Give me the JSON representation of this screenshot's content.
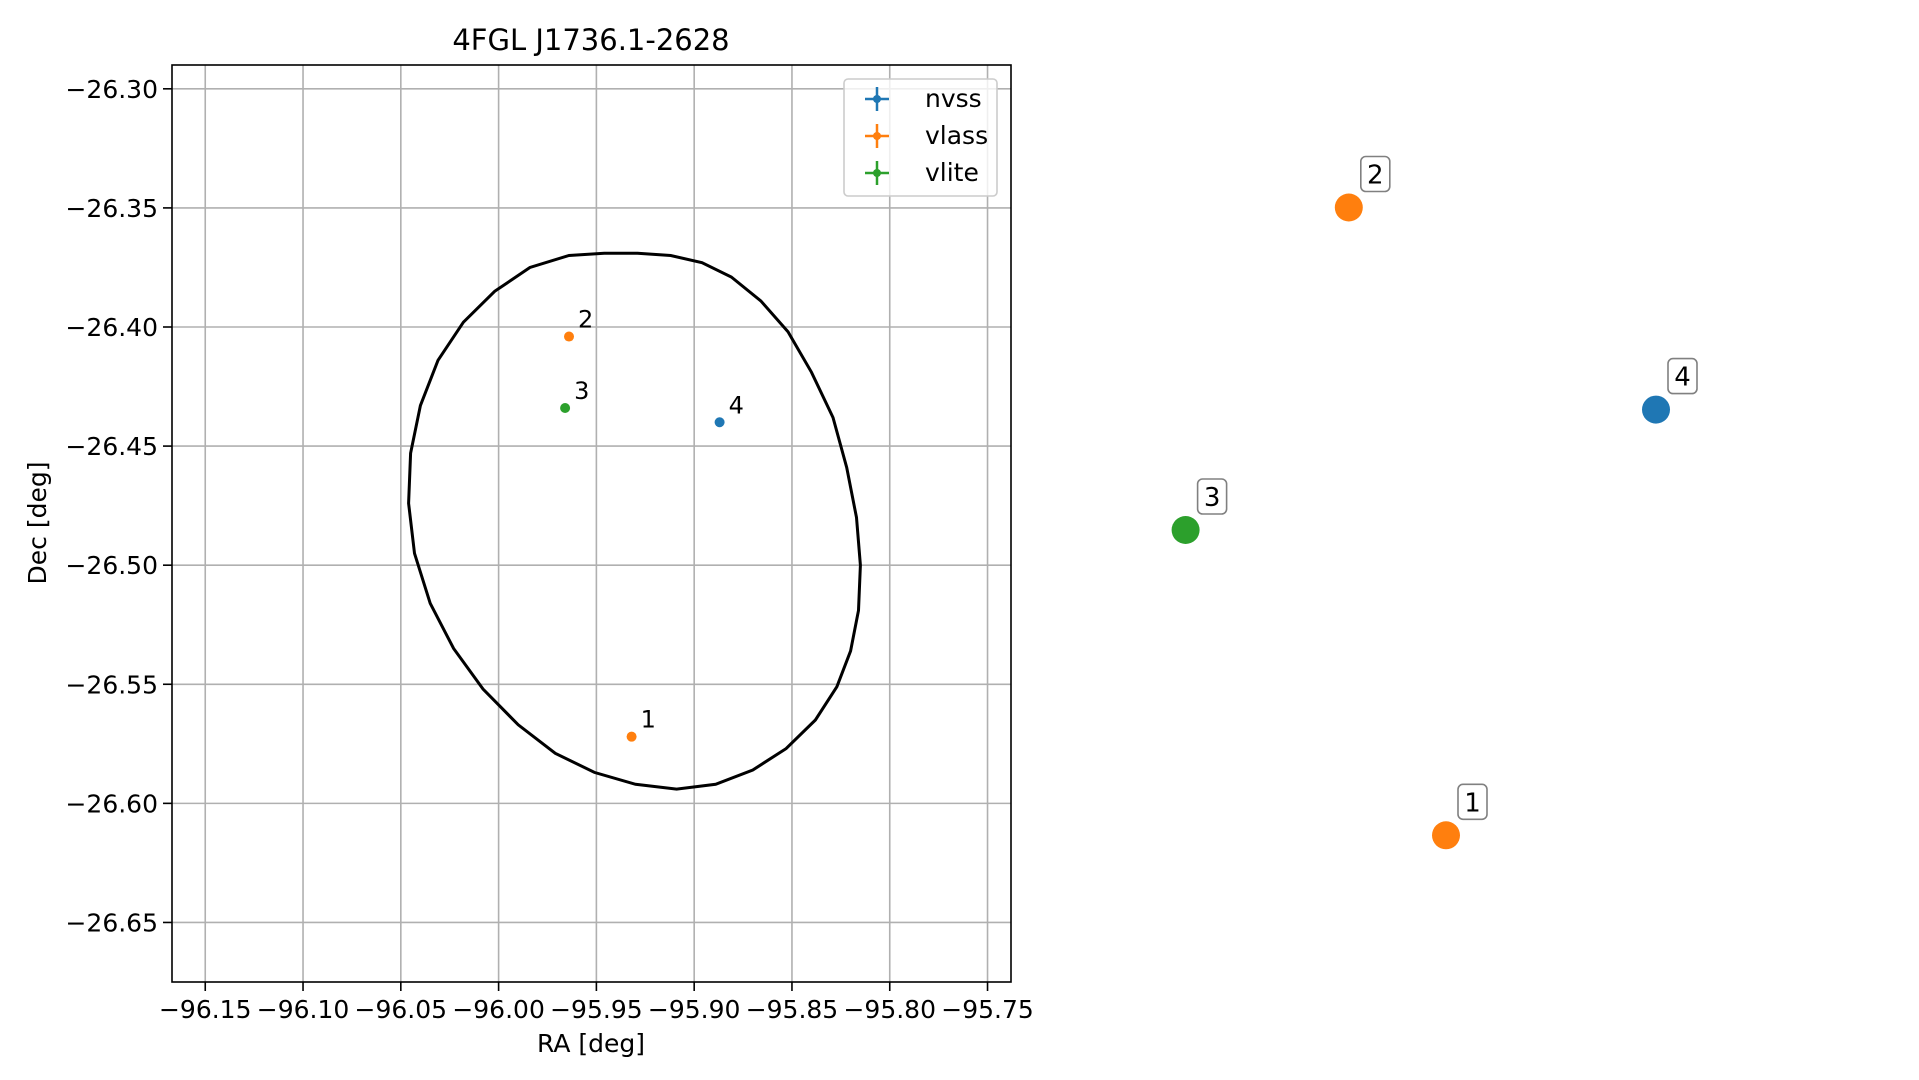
{
  "chart_data": [
    {
      "type": "scatter",
      "title": "4FGL J1736.1-2628",
      "xlabel": "RA [deg]",
      "ylabel": "Dec [deg]",
      "xlim": [
        -96.167,
        -95.738
      ],
      "ylim": [
        -26.675,
        -26.29
      ],
      "grid": true,
      "legend_position": "top-right",
      "x_ticks": [
        -96.15,
        -96.1,
        -96.05,
        -96.0,
        -95.95,
        -95.9,
        -95.85,
        -95.8,
        -95.75
      ],
      "x_tick_labels": [
        "−96.15",
        "−96.10",
        "−96.05",
        "−96.00",
        "−95.95",
        "−95.90",
        "−95.85",
        "−95.80",
        "−95.75"
      ],
      "y_ticks": [
        -26.3,
        -26.35,
        -26.4,
        -26.45,
        -26.5,
        -26.55,
        -26.6,
        -26.65
      ],
      "y_tick_labels": [
        "−26.30",
        "−26.35",
        "−26.40",
        "−26.45",
        "−26.50",
        "−26.55",
        "−26.60",
        "−26.65"
      ],
      "series": [
        {
          "name": "nvss",
          "color": "#1f77b4",
          "points": [
            {
              "x": -95.887,
              "y": -26.44,
              "label": "4"
            }
          ]
        },
        {
          "name": "vlass",
          "color": "#ff7f0e",
          "points": [
            {
              "x": -95.932,
              "y": -26.572,
              "label": "1"
            },
            {
              "x": -95.964,
              "y": -26.404,
              "label": "2"
            }
          ]
        },
        {
          "name": "vlite",
          "color": "#2ca02c",
          "points": [
            {
              "x": -95.966,
              "y": -26.434,
              "label": "3"
            }
          ]
        }
      ],
      "ellipse": {
        "color": "#000000",
        "points": [
          [
            -95.929,
            -26.369
          ],
          [
            -95.912,
            -26.37
          ],
          [
            -95.896,
            -26.373
          ],
          [
            -95.881,
            -26.379
          ],
          [
            -95.866,
            -26.389
          ],
          [
            -95.852,
            -26.402
          ],
          [
            -95.84,
            -26.419
          ],
          [
            -95.829,
            -26.438
          ],
          [
            -95.822,
            -26.459
          ],
          [
            -95.817,
            -26.48
          ],
          [
            -95.815,
            -26.5
          ],
          [
            -95.816,
            -26.519
          ],
          [
            -95.82,
            -26.536
          ],
          [
            -95.827,
            -26.551
          ],
          [
            -95.838,
            -26.565
          ],
          [
            -95.853,
            -26.577
          ],
          [
            -95.87,
            -26.586
          ],
          [
            -95.889,
            -26.592
          ],
          [
            -95.909,
            -26.594
          ],
          [
            -95.93,
            -26.592
          ],
          [
            -95.951,
            -26.587
          ],
          [
            -95.971,
            -26.579
          ],
          [
            -95.99,
            -26.567
          ],
          [
            -96.008,
            -26.552
          ],
          [
            -96.023,
            -26.535
          ],
          [
            -96.035,
            -26.516
          ],
          [
            -96.043,
            -26.495
          ],
          [
            -96.046,
            -26.474
          ],
          [
            -96.045,
            -26.453
          ],
          [
            -96.04,
            -26.433
          ],
          [
            -96.031,
            -26.414
          ],
          [
            -96.018,
            -26.398
          ],
          [
            -96.002,
            -26.385
          ],
          [
            -95.984,
            -26.375
          ],
          [
            -95.964,
            -26.37
          ],
          [
            -95.946,
            -26.369
          ]
        ]
      }
    },
    {
      "type": "scatter",
      "title": "",
      "xlabel": "",
      "ylabel": "",
      "grid": false,
      "axes": "off",
      "points": [
        {
          "label": "1",
          "color": "#ff7f0e",
          "x": 0.41,
          "y": 0.145
        },
        {
          "label": "2",
          "color": "#ff7f0e",
          "x": 0.248,
          "y": 0.875
        },
        {
          "label": "3",
          "color": "#2ca02c",
          "x": -0.024,
          "y": 0.5
        },
        {
          "label": "4",
          "color": "#1f77b4",
          "x": 0.76,
          "y": 0.64
        }
      ]
    }
  ]
}
